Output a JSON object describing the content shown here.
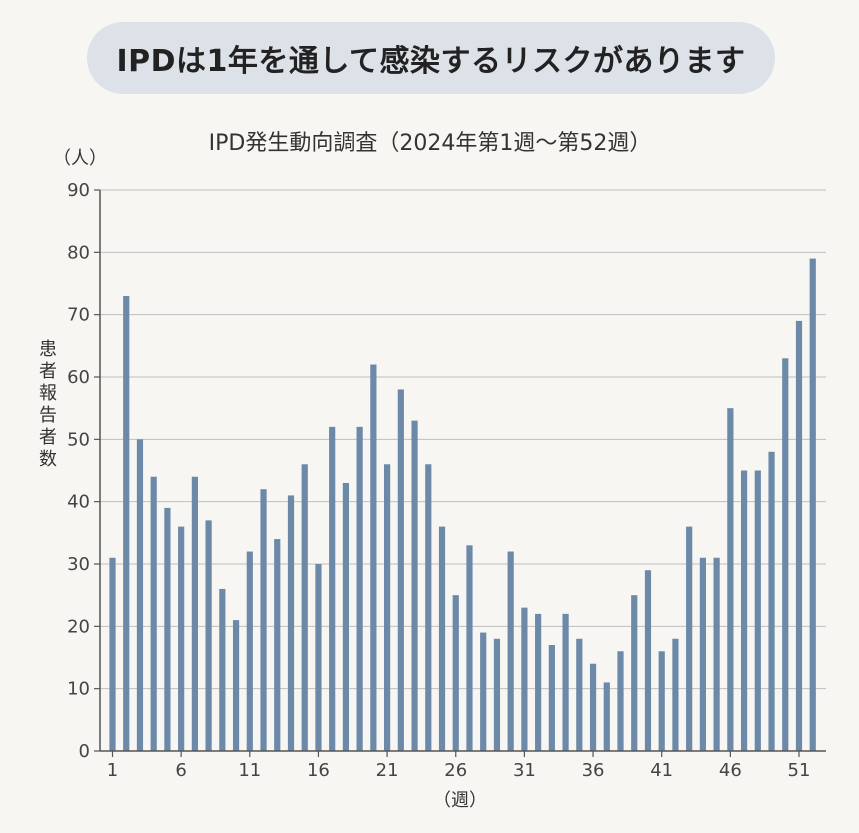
{
  "banner": {
    "text": "IPDは1年を通して感染するリスクがあります"
  },
  "chart_data": {
    "type": "bar",
    "title": "IPD発生動向調査（2024年第1週〜第52週）",
    "ylabel": "患者報告者数",
    "y_unit": "（人）",
    "xlabel": "（週）",
    "ylim": [
      0,
      90
    ],
    "yticks": [
      0,
      10,
      20,
      30,
      40,
      50,
      60,
      70,
      80,
      90
    ],
    "xticks": [
      1,
      6,
      11,
      16,
      21,
      26,
      31,
      36,
      41,
      46,
      51
    ],
    "grid": true,
    "bar_color": "#6c8aa8",
    "grid_color": "#bfbfbf",
    "weeks": [
      1,
      2,
      3,
      4,
      5,
      6,
      7,
      8,
      9,
      10,
      11,
      12,
      13,
      14,
      15,
      16,
      17,
      18,
      19,
      20,
      21,
      22,
      23,
      24,
      25,
      26,
      27,
      28,
      29,
      30,
      31,
      32,
      33,
      34,
      35,
      36,
      37,
      38,
      39,
      40,
      41,
      42,
      43,
      44,
      45,
      46,
      47,
      48,
      49,
      50,
      51,
      52
    ],
    "values": [
      31,
      73,
      50,
      44,
      39,
      36,
      44,
      37,
      26,
      21,
      32,
      42,
      34,
      41,
      46,
      30,
      52,
      43,
      52,
      62,
      46,
      58,
      53,
      46,
      36,
      25,
      33,
      19,
      18,
      32,
      23,
      22,
      17,
      22,
      18,
      14,
      11,
      16,
      25,
      29,
      16,
      18,
      36,
      31,
      31,
      55,
      45,
      45,
      48,
      63,
      69,
      79
    ]
  }
}
